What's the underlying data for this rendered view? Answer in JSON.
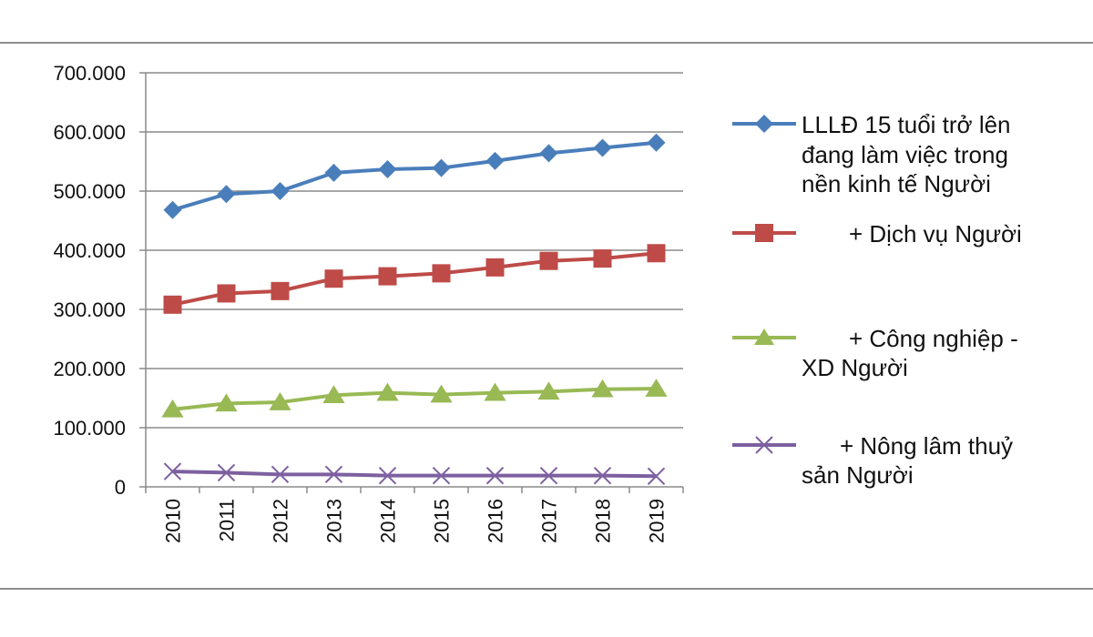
{
  "chart_data": {
    "type": "line",
    "categories": [
      "2010",
      "2011",
      "2012",
      "2013",
      "2014",
      "2015",
      "2016",
      "2017",
      "2018",
      "2019"
    ],
    "ylim": [
      0,
      700000
    ],
    "yticks": [
      0,
      100000,
      200000,
      300000,
      400000,
      500000,
      600000,
      700000
    ],
    "ytick_labels": [
      "0",
      "100.000",
      "200.000",
      "300.000",
      "400.000",
      "500.000",
      "600.000",
      "700.000"
    ],
    "grid": true,
    "legend_position": "right",
    "series": [
      {
        "name": "LLLĐ 15 tuổi trở lên đang làm việc trong nền kinh tế Người",
        "legend_lines": [
          "LLLĐ 15 tuổi trở lên",
          "đang làm việc trong",
          "nền kinh tế Người"
        ],
        "color": "#4a7ebb",
        "marker": "diamond",
        "values": [
          468000,
          495000,
          500000,
          531000,
          537000,
          539000,
          551000,
          564000,
          573000,
          582000
        ]
      },
      {
        "name": "+ Dịch vụ Người",
        "legend_lines": [
          "+ Dịch vụ Người"
        ],
        "color": "#be4b48",
        "marker": "square",
        "values": [
          308000,
          327000,
          331000,
          352000,
          356000,
          361000,
          371000,
          382000,
          386000,
          395000
        ]
      },
      {
        "name": "+ Công nghiệp - XD Người",
        "legend_lines": [
          "+ Công nghiệp -",
          "XD Người"
        ],
        "color": "#98b954",
        "marker": "triangle",
        "values": [
          131000,
          141000,
          143000,
          155000,
          159000,
          156000,
          159000,
          161000,
          165000,
          166000
        ]
      },
      {
        "name": "+ Nông lâm thuỷ sản Người",
        "legend_lines": [
          "+ Nông lâm thuỷ",
          "sản Người"
        ],
        "color": "#7d60a0",
        "marker": "x",
        "values": [
          26000,
          24000,
          21000,
          21000,
          19000,
          19000,
          19000,
          19000,
          19000,
          18000
        ]
      }
    ]
  }
}
